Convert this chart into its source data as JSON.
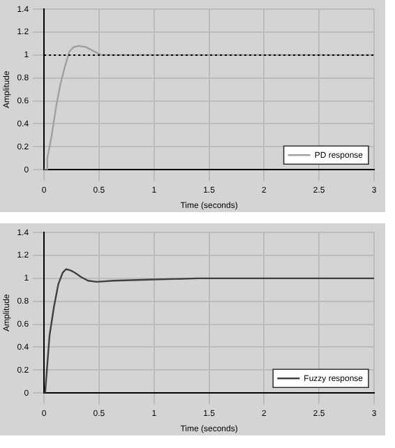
{
  "chart_data": [
    {
      "type": "line",
      "xlabel": "Time (seconds)",
      "ylabel": "Amplitude",
      "xlim": [
        0,
        3
      ],
      "xticks": [
        0,
        0.5,
        1,
        1.5,
        2,
        2.5,
        3
      ],
      "ylim": [
        0,
        1.4
      ],
      "yticks": [
        0,
        0.2,
        0.4,
        0.6,
        0.8,
        1,
        1.2,
        1.4
      ],
      "grid": true,
      "legend": "bottom right",
      "ref_lines": [
        {
          "axis": "y",
          "value": 1,
          "color": "#000000",
          "line_style": "dotted"
        }
      ],
      "series": [
        {
          "name": "PD response",
          "color": "#a0a0a0",
          "x": [
            0,
            0.02,
            0.03,
            0.07,
            0.11,
            0.15,
            0.19,
            0.23,
            0.27,
            0.32,
            0.38,
            0.44,
            0.52,
            1,
            2,
            3
          ],
          "values": [
            0,
            0,
            0.1,
            0.3,
            0.55,
            0.75,
            0.9,
            1.03,
            1.07,
            1.08,
            1.07,
            1.04,
            1,
            1,
            1,
            1
          ]
        }
      ]
    },
    {
      "type": "line",
      "xlabel": "Time (seconds)",
      "ylabel": "Amplitude",
      "xlim": [
        0,
        3
      ],
      "xticks": [
        0,
        0.5,
        1,
        1.5,
        2,
        2.5,
        3
      ],
      "ylim": [
        0,
        1.4
      ],
      "yticks": [
        0,
        0.2,
        0.4,
        0.6,
        0.8,
        1,
        1.2,
        1.4
      ],
      "grid": true,
      "legend": "bottom right",
      "series": [
        {
          "name": "Fuzzy response",
          "color": "#404040",
          "x": [
            0,
            0.01,
            0.03,
            0.05,
            0.09,
            0.13,
            0.17,
            0.2,
            0.24,
            0.28,
            0.34,
            0.4,
            0.48,
            0.63,
            1,
            1.4,
            2,
            3
          ],
          "values": [
            0,
            0,
            0.25,
            0.5,
            0.75,
            0.95,
            1.05,
            1.08,
            1.07,
            1.05,
            1.01,
            0.98,
            0.97,
            0.98,
            0.99,
            1,
            1,
            1
          ]
        }
      ]
    }
  ]
}
